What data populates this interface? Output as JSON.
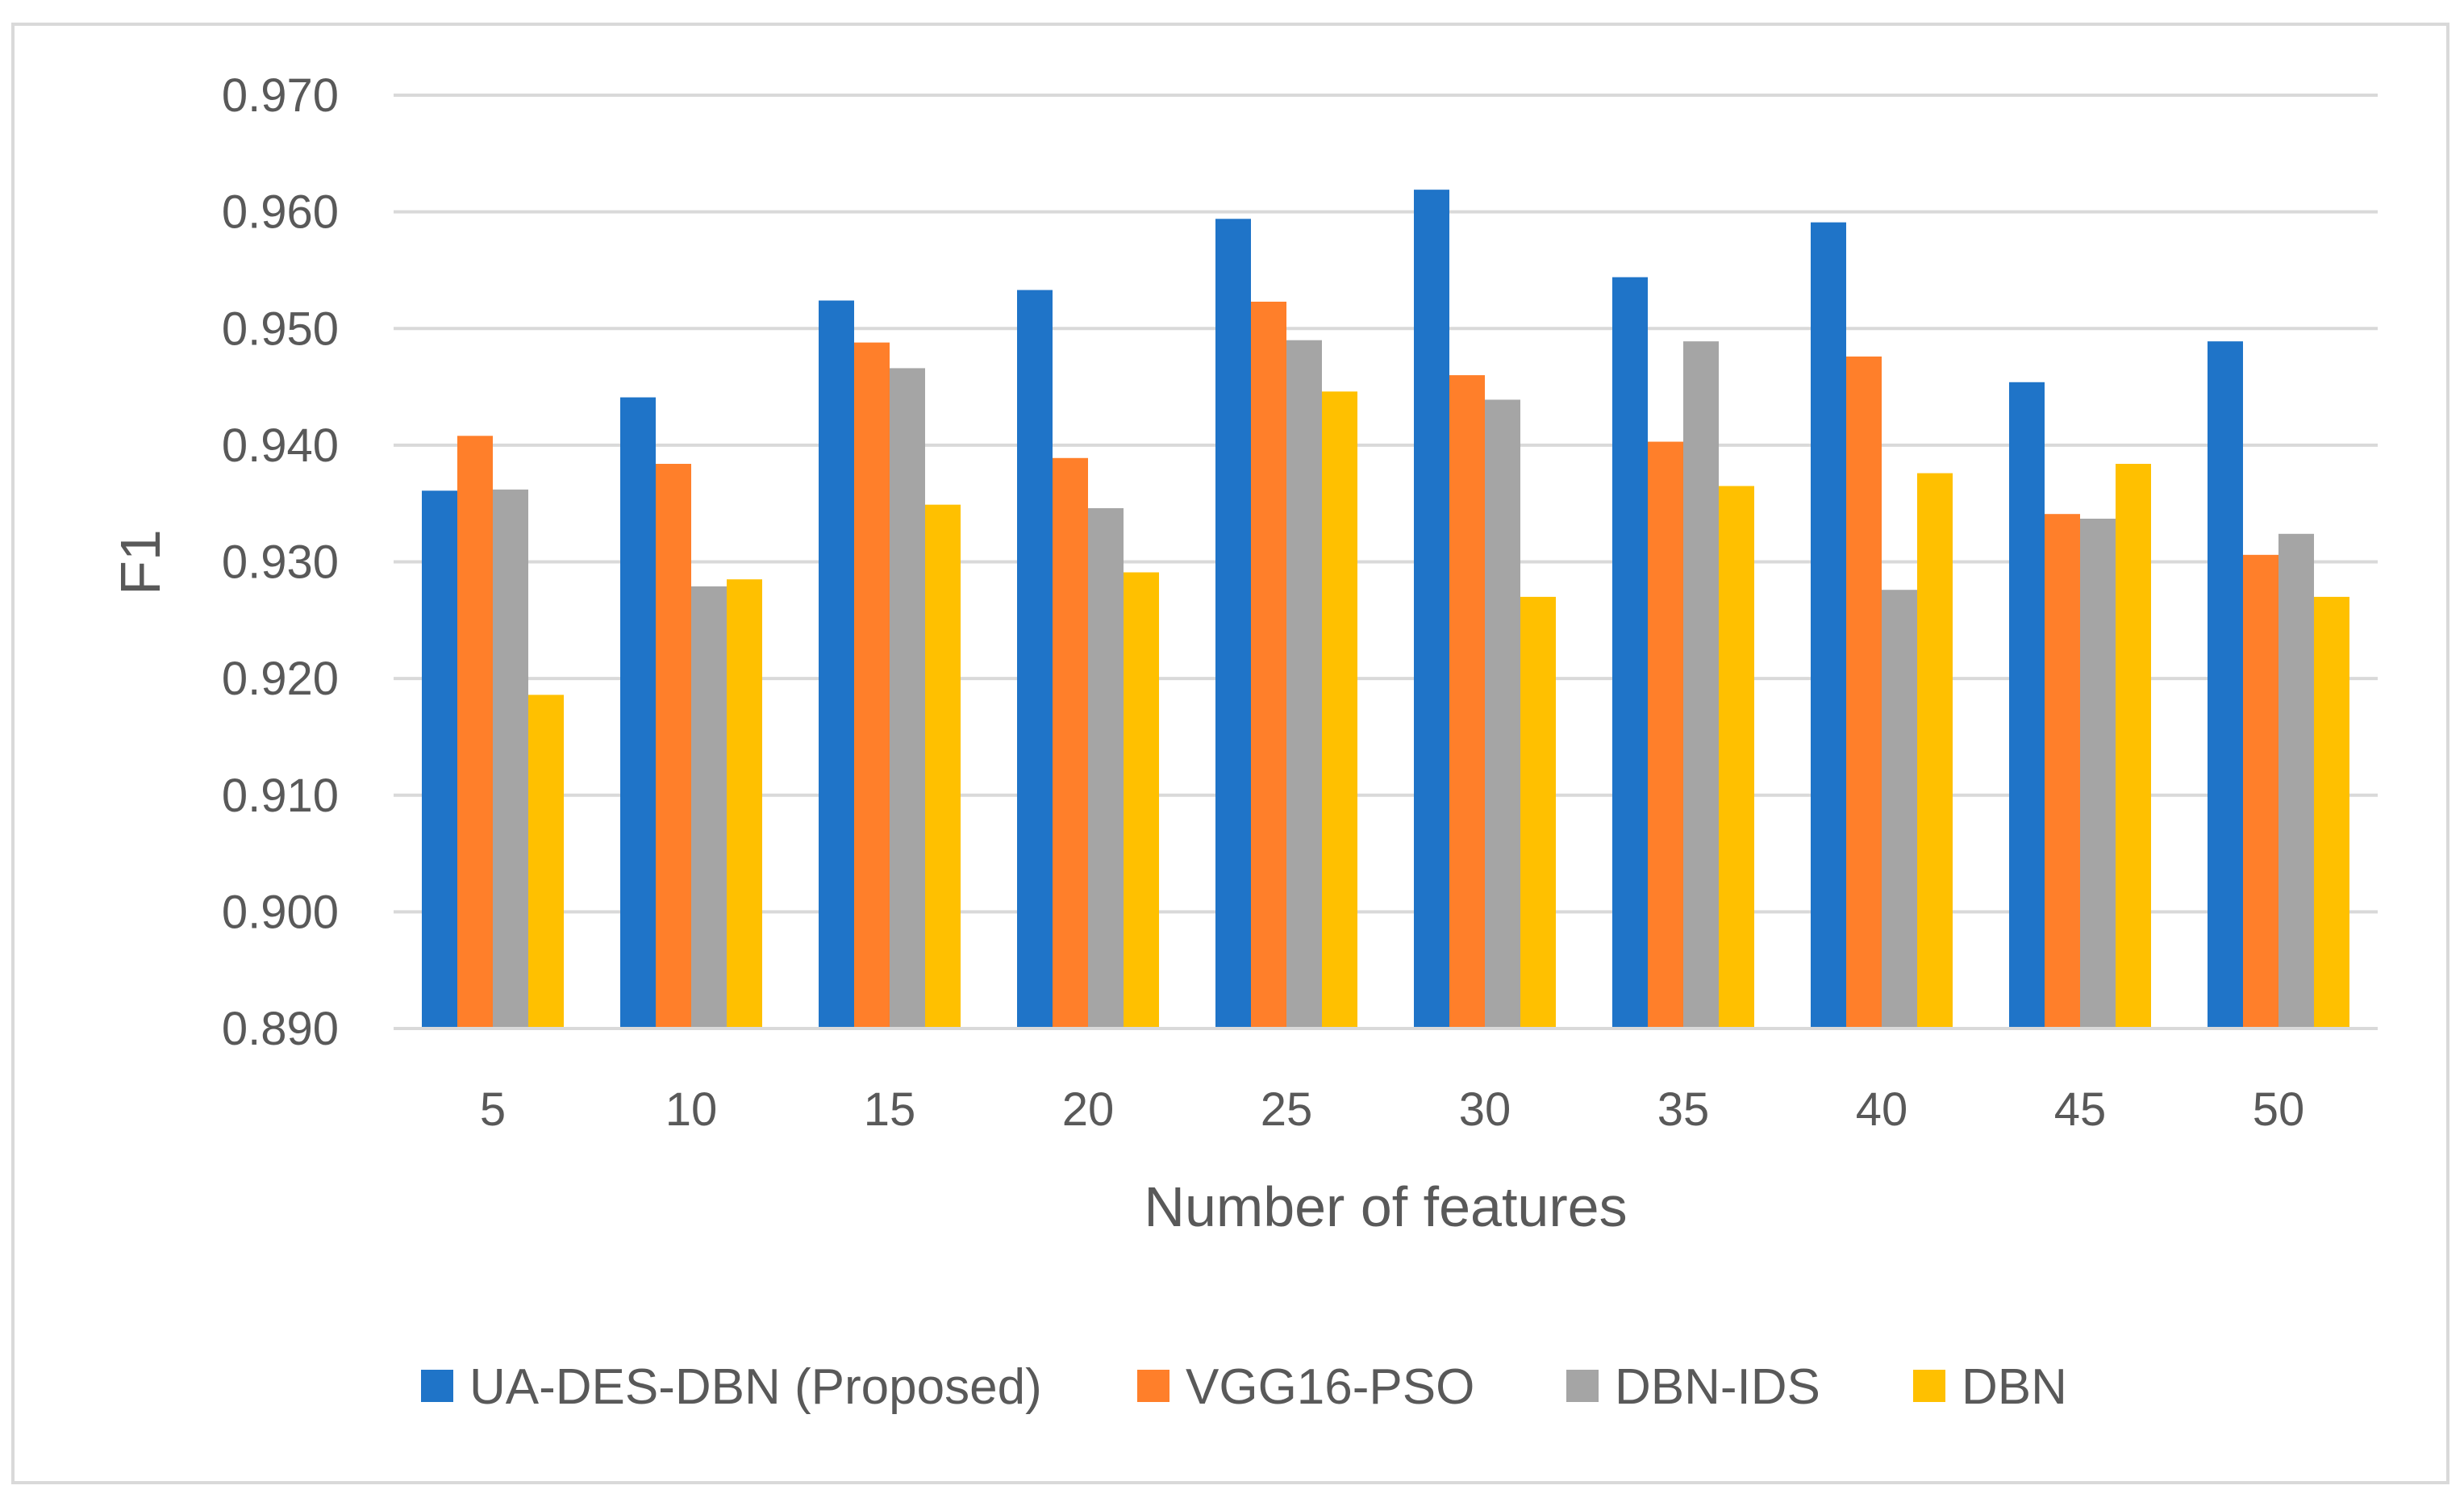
{
  "chart_data": {
    "type": "bar",
    "title": "",
    "xlabel": "Number of features",
    "ylabel": "F1",
    "categories": [
      "5",
      "10",
      "15",
      "20",
      "25",
      "30",
      "35",
      "40",
      "45",
      "50"
    ],
    "ylim": [
      0.89,
      0.97
    ],
    "ytick_values": [
      0.89,
      0.9,
      0.91,
      0.92,
      0.93,
      0.94,
      0.95,
      0.96,
      0.97
    ],
    "ytick_labels": [
      "0.890",
      "0.900",
      "0.910",
      "0.920",
      "0.930",
      "0.940",
      "0.950",
      "0.960",
      "0.970"
    ],
    "grid": true,
    "legend_position": "bottom",
    "series": [
      {
        "name": "UA-DES-DBN (Proposed)",
        "color": "#1f74c8",
        "values": [
          0.9361,
          0.9441,
          0.9524,
          0.9533,
          0.9594,
          0.9619,
          0.9544,
          0.9591,
          0.9454,
          0.9489
        ]
      },
      {
        "name": "VGG16-PSO",
        "color": "#ff7f2a",
        "values": [
          0.9408,
          0.9384,
          0.9488,
          0.9389,
          0.9523,
          0.946,
          0.9403,
          0.9476,
          0.9341,
          0.9306
        ]
      },
      {
        "name": "DBN-IDS",
        "color": "#a5a5a5",
        "values": [
          0.9362,
          0.9279,
          0.9466,
          0.9346,
          0.949,
          0.9439,
          0.9489,
          0.9276,
          0.9337,
          0.9324
        ]
      },
      {
        "name": "DBN",
        "color": "#ffc000",
        "values": [
          0.9186,
          0.9285,
          0.9349,
          0.9291,
          0.9446,
          0.927,
          0.9365,
          0.9376,
          0.9384,
          0.927
        ]
      }
    ]
  }
}
